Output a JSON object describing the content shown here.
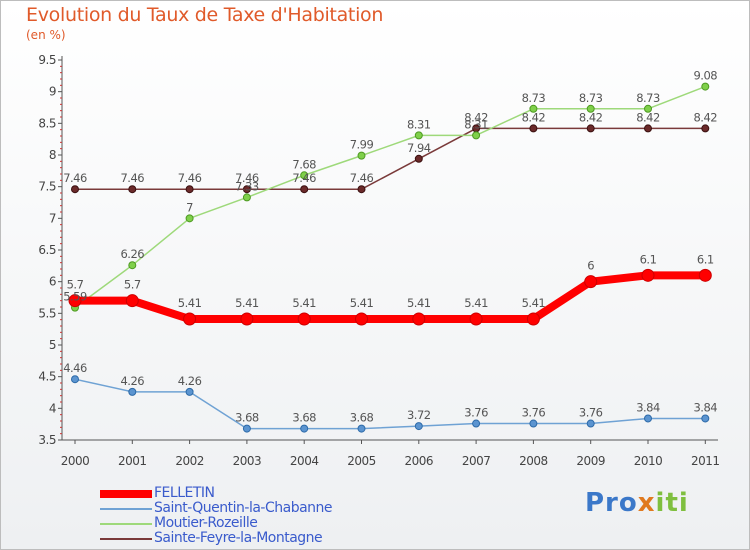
{
  "title": "Evolution du Taux de Taxe d'Habitation",
  "unit": "(en %)",
  "logo": {
    "p1": "Pro",
    "p2": "x",
    "p3": "iti"
  },
  "colors": {
    "FELLETIN": "#ff0000",
    "Saint-Quentin-la-Chabanne": "#6fa2d4",
    "Moutier-Rozeille": "#9ed97a",
    "Sainte-Feyre-la-Montagne": "#7a3a3a"
  },
  "chart_data": {
    "type": "line",
    "title": "Evolution du Taux de Taxe d'Habitation",
    "ylabel": "(en %)",
    "xlabel": "",
    "x": [
      "2000",
      "2001",
      "2002",
      "2003",
      "2004",
      "2005",
      "2006",
      "2007",
      "2008",
      "2009",
      "2010",
      "2011"
    ],
    "ylim": [
      3.5,
      9.5
    ],
    "yticks": [
      "3.5",
      "4",
      "4.5",
      "5",
      "5.5",
      "6",
      "6.5",
      "7",
      "7.5",
      "8",
      "8.5",
      "9",
      "9.5"
    ],
    "grid": false,
    "legend_position": "bottom-left",
    "series": [
      {
        "name": "FELLETIN",
        "values": [
          5.7,
          5.7,
          5.41,
          5.41,
          5.41,
          5.41,
          5.41,
          5.41,
          5.41,
          6,
          6.1,
          6.1
        ],
        "labels": [
          "5.7",
          "5.7",
          "5.41",
          "5.41",
          "5.41",
          "5.41",
          "5.41",
          "5.41",
          "5.41",
          "6",
          "6.1",
          "6.1"
        ]
      },
      {
        "name": "Saint-Quentin-la-Chabanne",
        "values": [
          4.46,
          4.26,
          4.26,
          3.68,
          3.68,
          3.68,
          3.72,
          3.76,
          3.76,
          3.76,
          3.84,
          3.84
        ],
        "labels": [
          "4.46",
          "4.26",
          "4.26",
          "3.68",
          "3.68",
          "3.68",
          "3.72",
          "3.76",
          "3.76",
          "3.76",
          "3.84",
          "3.84"
        ]
      },
      {
        "name": "Moutier-Rozeille",
        "values": [
          5.59,
          6.26,
          7,
          7.33,
          7.68,
          7.99,
          8.31,
          8.31,
          8.73,
          8.73,
          8.73,
          9.08
        ],
        "labels": [
          "5.59",
          "6.26",
          "7",
          "7.33",
          "7.68",
          "7.99",
          "8.31",
          "8.31",
          "8.73",
          "8.73",
          "8.73",
          "9.08"
        ]
      },
      {
        "name": "Sainte-Feyre-la-Montagne",
        "values": [
          7.46,
          7.46,
          7.46,
          7.46,
          7.46,
          7.46,
          7.94,
          8.42,
          8.42,
          8.42,
          8.42,
          8.42
        ],
        "labels": [
          "7.46",
          "7.46",
          "7.46",
          "7.46",
          "7.46",
          "7.46",
          "7.94",
          "8.42",
          "8.42",
          "8.42",
          "8.42",
          "8.42"
        ]
      }
    ]
  }
}
